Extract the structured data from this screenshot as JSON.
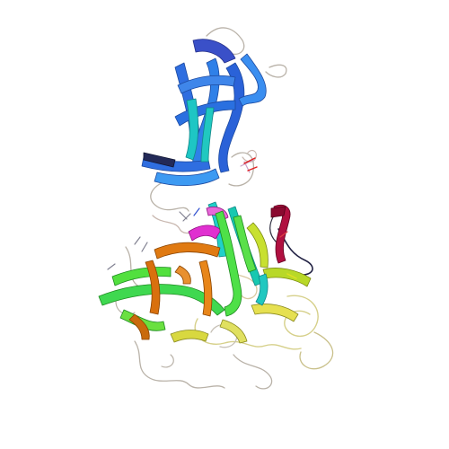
{
  "image": {
    "subject": "protein-ribbon-structure",
    "background": "#ffffff",
    "palette": {
      "blue": "#2e73e0",
      "dark_blue": "#3a3fb0",
      "teal": "#19c9c6",
      "green": "#49e640",
      "yellow_green": "#b8e02a",
      "yellow": "#e8e050",
      "orange": "#e07810",
      "magenta": "#e01ad8",
      "crimson": "#b0103a",
      "dark": "#1a1a33",
      "loop": "#a8a8b8"
    }
  }
}
